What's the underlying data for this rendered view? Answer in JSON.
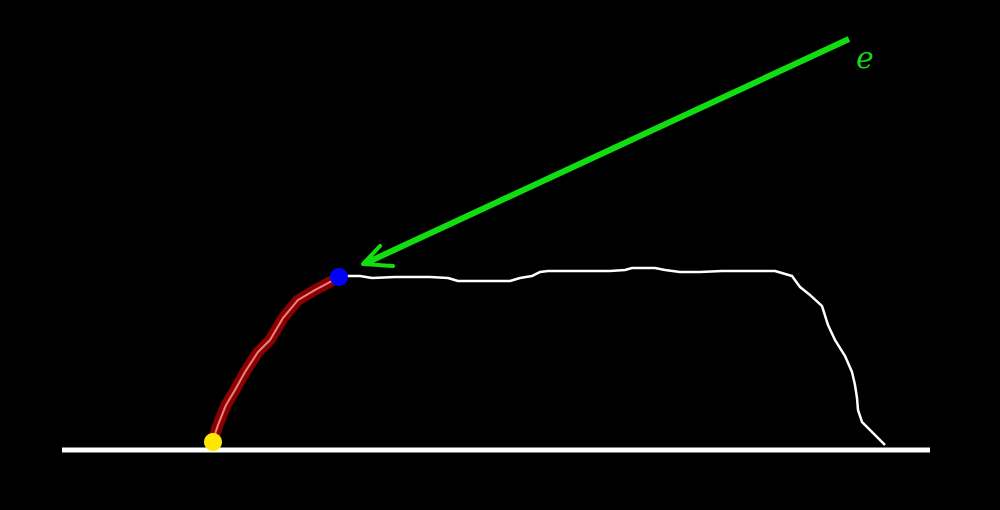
{
  "diagram": {
    "background_color": "#000000",
    "baseline": {
      "color": "#ffffff"
    },
    "profile": {
      "color": "#ffffff",
      "description_shape": "trapezoid-like droplet profile"
    },
    "highlighted_segment": {
      "color": "#8b0000",
      "core_color": "#f08080"
    },
    "start_point": {
      "color": "#ffe600"
    },
    "end_point": {
      "color": "#0000ff"
    },
    "arrow": {
      "color": "#11dd11",
      "label": "e"
    }
  }
}
